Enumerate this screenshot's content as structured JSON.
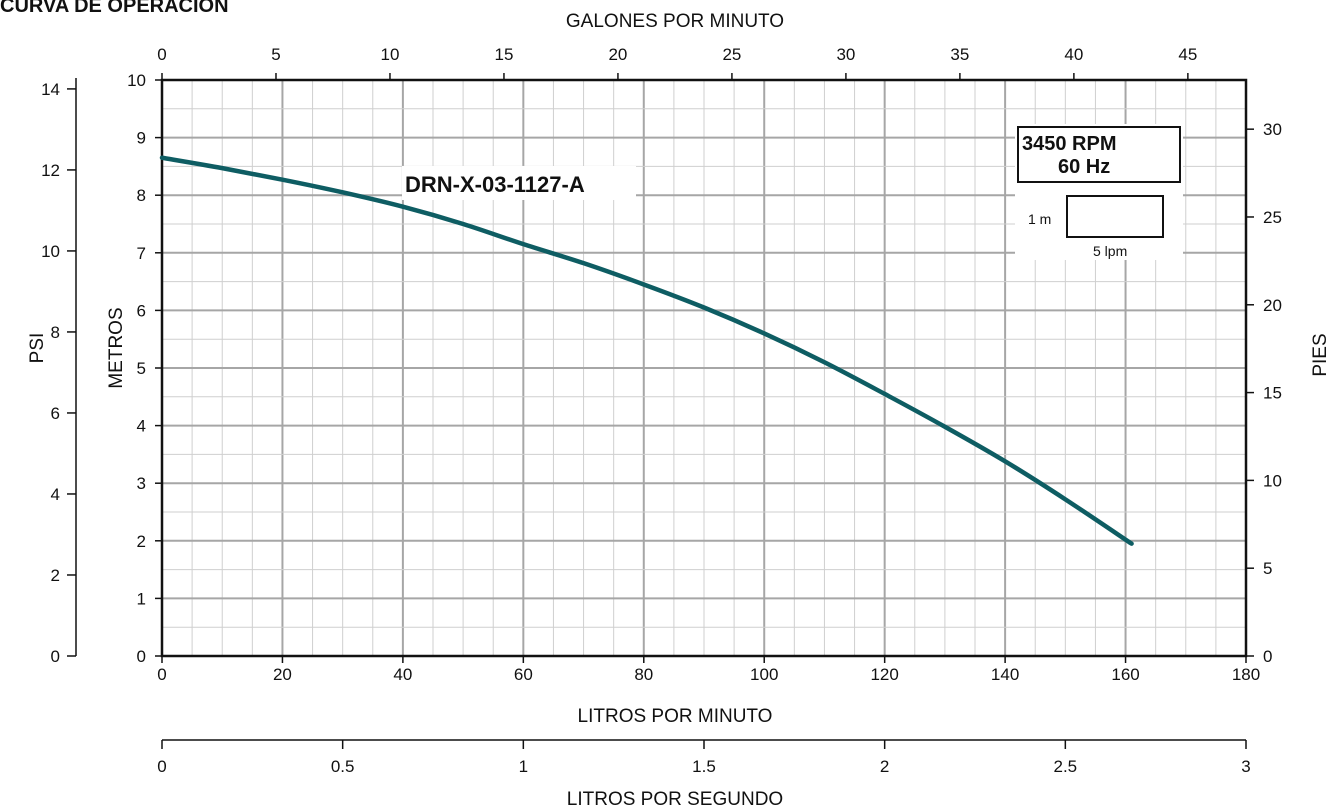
{
  "page": {
    "title": "CURVA DE OPERACION"
  },
  "chart_data": {
    "type": "line",
    "series": [
      {
        "name": "DRN-X-03-1127-A",
        "color": "#0e5d63",
        "x": [
          0,
          10,
          20,
          30,
          40,
          50,
          60,
          70,
          80,
          90,
          100,
          110,
          120,
          130,
          140,
          150,
          161
        ],
        "y": [
          8.65,
          8.47,
          8.27,
          8.05,
          7.8,
          7.5,
          7.15,
          6.82,
          6.45,
          6.05,
          5.6,
          5.1,
          4.55,
          3.98,
          3.38,
          2.72,
          1.95
        ]
      }
    ],
    "axes": {
      "bottom": {
        "label": "LITROS POR MINUTO",
        "range": [
          0,
          180
        ],
        "ticks": [
          0,
          20,
          40,
          60,
          80,
          100,
          120,
          140,
          160,
          180
        ]
      },
      "top": {
        "label": "GALONES POR MINUTO",
        "range": [
          0,
          47.55
        ],
        "ticks": [
          0,
          5,
          10,
          15,
          20,
          25,
          30,
          35,
          40,
          45
        ]
      },
      "lps": {
        "label": "LITROS POR SEGUNDO",
        "range": [
          0,
          3
        ],
        "ticks": [
          0,
          0.5,
          1,
          1.5,
          2,
          2.5,
          3
        ]
      },
      "left": {
        "label": "METROS",
        "range": [
          0,
          10
        ],
        "ticks": [
          0,
          1,
          2,
          3,
          4,
          5,
          6,
          7,
          8,
          9,
          10
        ]
      },
      "psi": {
        "label": "PSI",
        "range": [
          0,
          14.22
        ],
        "ticks": [
          0,
          2,
          4,
          6,
          8,
          10,
          12,
          14
        ]
      },
      "right": {
        "label": "PIES",
        "range": [
          0,
          32.8
        ],
        "ticks": [
          0,
          5,
          10,
          15,
          20,
          25,
          30
        ]
      }
    },
    "grid": true,
    "annotations": {
      "curve_label": "DRN-X-03-1127-A",
      "rpm": "3450 RPM",
      "hz": "60 Hz",
      "scale_vertical": "1 m",
      "scale_horizontal": "5 lpm"
    }
  }
}
